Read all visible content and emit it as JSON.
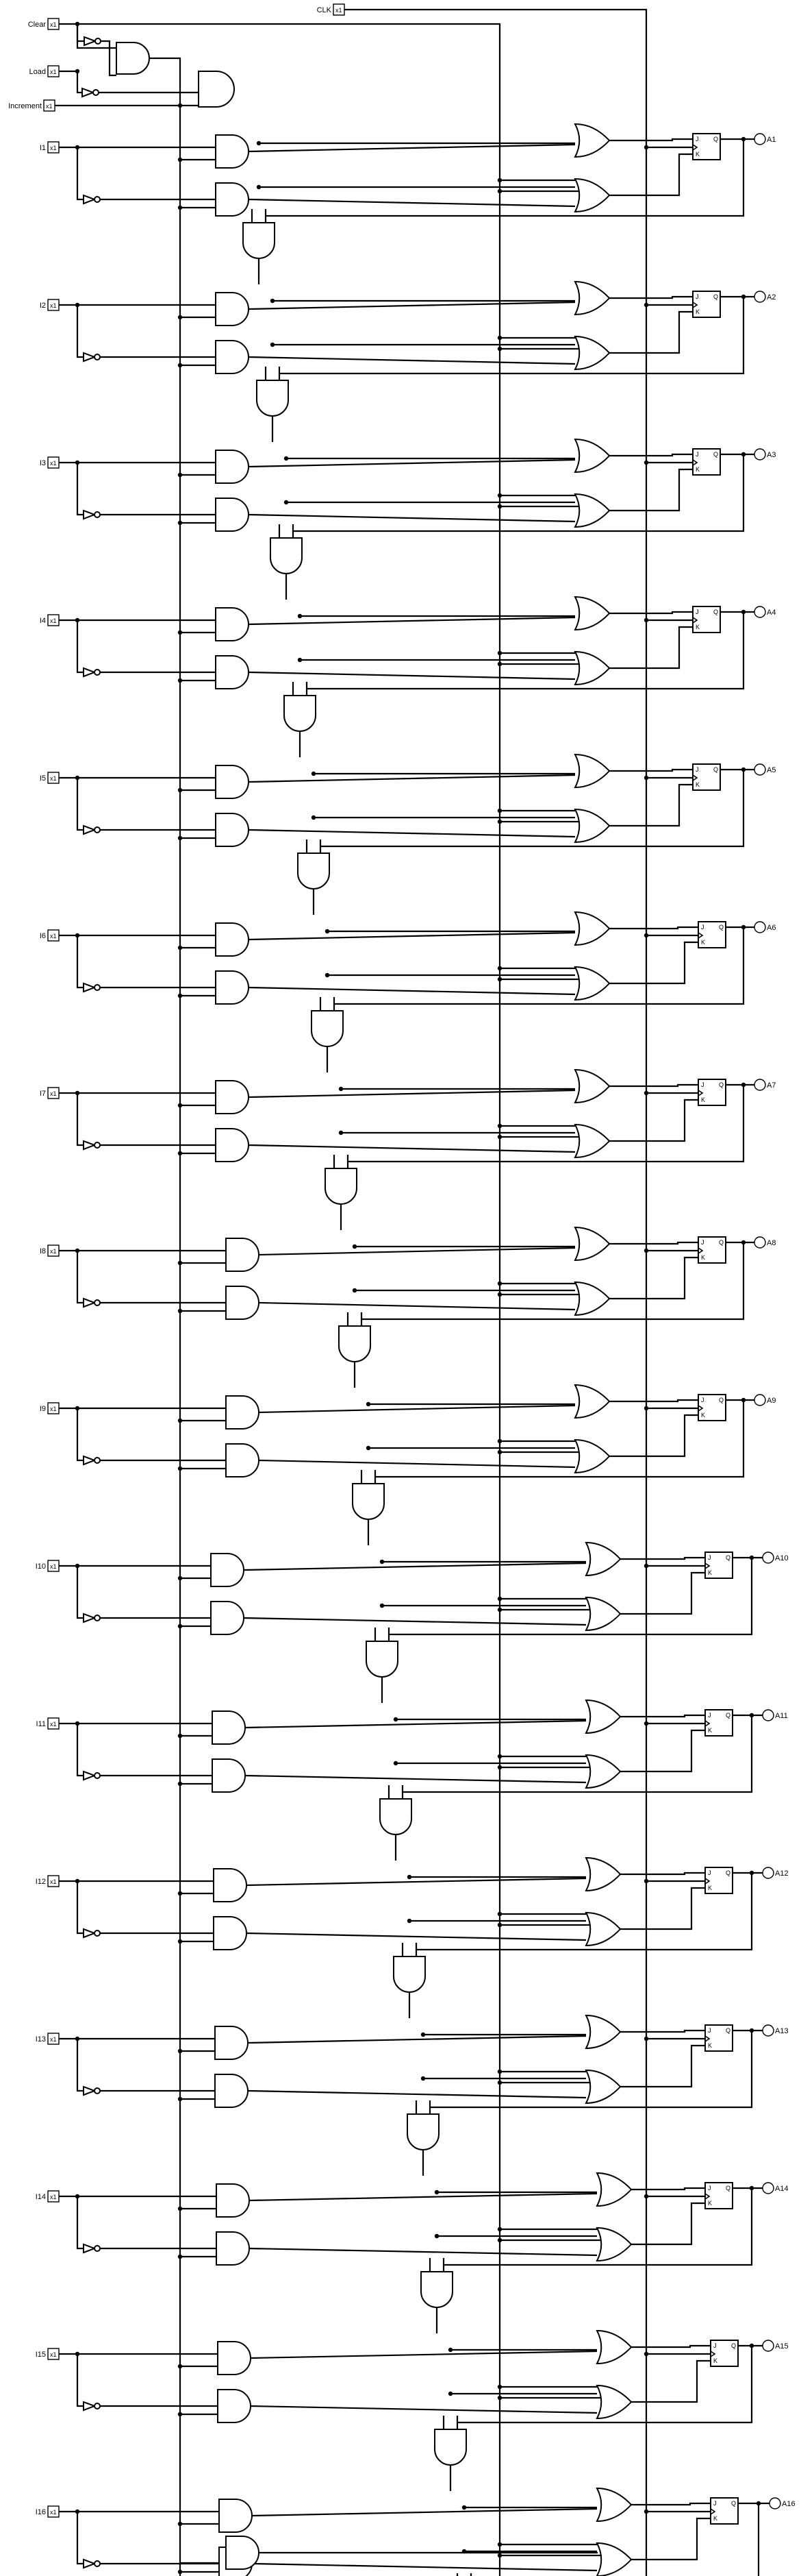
{
  "inputs": {
    "clear": "Clear",
    "load": "Load",
    "increment": "Increment",
    "clk": "CLK",
    "bits": [
      "I1",
      "I2",
      "I3",
      "I4",
      "I5",
      "I6",
      "I7",
      "I8",
      "I9",
      "I10",
      "I11",
      "I12",
      "I13",
      "I14",
      "I15",
      "I16"
    ]
  },
  "input_value": "x1",
  "outputs": [
    "A1",
    "A2",
    "A3",
    "A4",
    "A5",
    "A6",
    "A7",
    "A8",
    "A9",
    "A10",
    "A11",
    "A12",
    "A13",
    "A14",
    "A15",
    "A16"
  ],
  "flipflop": {
    "j": "J",
    "k": "K",
    "q": "Q"
  },
  "colors": {
    "wire": "#000000",
    "background": "#ffffff"
  },
  "icons": {
    "input_pin": "input-pin-icon",
    "output_pin": "output-pin-icon",
    "and_gate": "and-gate-icon",
    "or_gate": "or-gate-icon",
    "inverter": "inverter-icon",
    "flipflop": "jk-flipflop-icon"
  }
}
